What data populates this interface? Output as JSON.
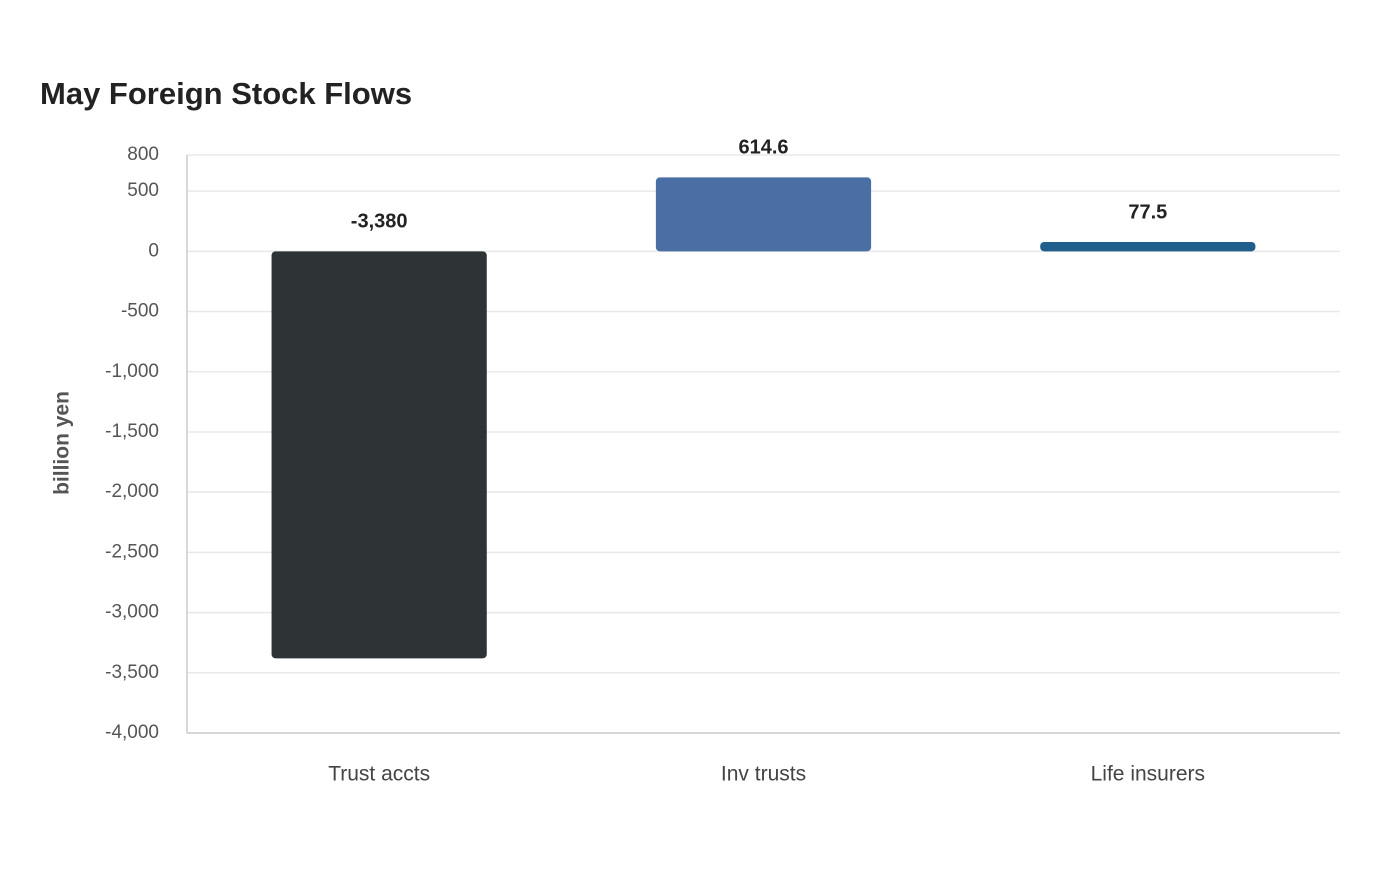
{
  "chart_data": {
    "type": "bar",
    "title": "May Foreign Stock Flows",
    "y_label": "billion yen",
    "categories": [
      "Trust accts",
      "Inv trusts",
      "Life insurers"
    ],
    "values": [
      -3380,
      614.6,
      77.5
    ],
    "value_labels": [
      "-3,380",
      "614.6",
      "77.5"
    ],
    "colors": [
      "#2e3436",
      "#4a6fa5",
      "#1f5f8b"
    ],
    "ylim": [
      -4000,
      800
    ],
    "yticks": [
      800,
      500,
      0,
      -500,
      {
        "value": -1000,
        "label": "-1,000"
      },
      {
        "value": -1500,
        "label": "-1,500"
      },
      {
        "value": -2000,
        "label": "-2,000"
      },
      {
        "value": -2500,
        "label": "-2,500"
      },
      {
        "value": -3000,
        "label": "-3,000"
      },
      {
        "value": -3500,
        "label": "-3,500"
      },
      {
        "value": -4000,
        "label": "-4,000"
      }
    ],
    "grid": true
  }
}
